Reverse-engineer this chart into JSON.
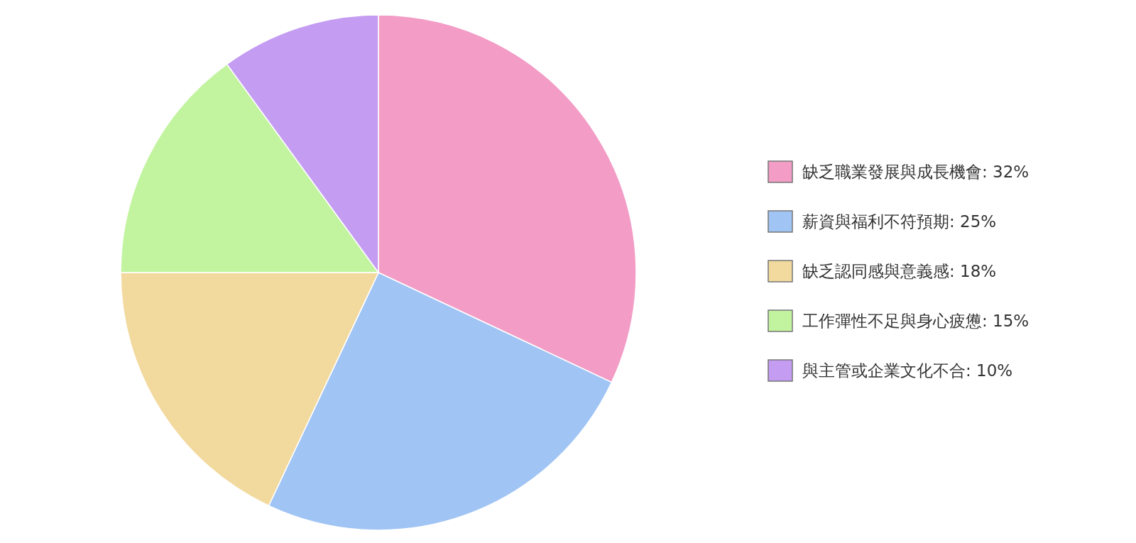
{
  "chart_data": {
    "type": "pie",
    "categories": [
      "缺乏職業發展與成長機會",
      "薪資與福利不符預期",
      "缺乏認同感與意義感",
      "工作彈性不足與身心疲憊",
      "與主管或企業文化不合"
    ],
    "values": [
      32,
      25,
      18,
      15,
      10
    ],
    "colors": [
      "#f29cc6",
      "#a0c4f4",
      "#f2d99e",
      "#c2f4a0",
      "#c49cf2"
    ],
    "value_labels": [
      "32%",
      "25%",
      "18%",
      "15%",
      "10%"
    ],
    "legend": "right"
  }
}
